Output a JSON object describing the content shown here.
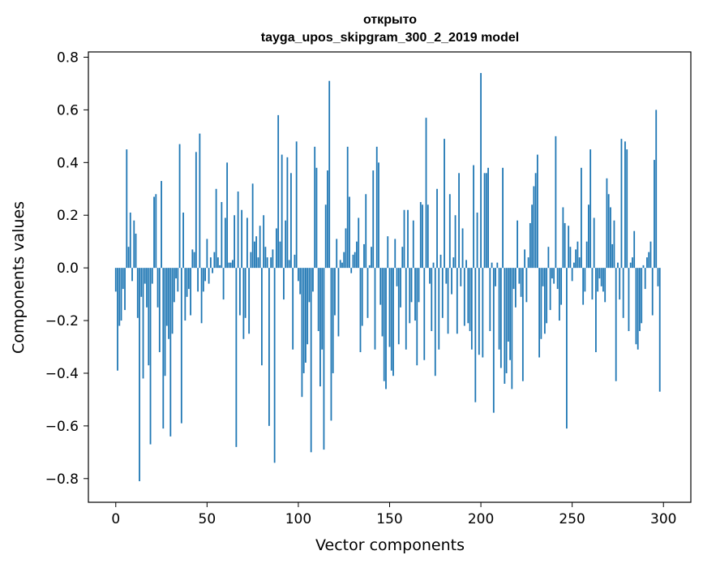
{
  "chart_data": {
    "type": "bar",
    "title": "открыто",
    "subtitle": "tayga_upos_skipgram_300_2_2019 model",
    "xlabel": "Vector components",
    "ylabel": "Components values",
    "xlim": [
      -15,
      315
    ],
    "ylim": [
      -0.89,
      0.82
    ],
    "xticks": [
      0,
      50,
      100,
      150,
      200,
      250,
      300
    ],
    "yticks": [
      -0.8,
      -0.6,
      -0.4,
      -0.2,
      0.0,
      0.2,
      0.4,
      0.6,
      0.8
    ],
    "xtick_labels": [
      "0",
      "50",
      "100",
      "150",
      "200",
      "250",
      "300"
    ],
    "ytick_labels": [
      "−0.8",
      "−0.6",
      "−0.4",
      "−0.2",
      "0.0",
      "0.2",
      "0.4",
      "0.6",
      "0.8"
    ],
    "bar_color": "#1f77b4",
    "grid": false,
    "x": "0..299",
    "values": [
      -0.09,
      -0.39,
      -0.22,
      -0.2,
      -0.08,
      -0.16,
      0.45,
      0.08,
      0.21,
      -0.05,
      0.18,
      0.13,
      -0.19,
      -0.81,
      -0.11,
      -0.42,
      -0.06,
      -0.15,
      -0.37,
      -0.67,
      -0.06,
      0.27,
      0.28,
      -0.15,
      -0.32,
      0.33,
      -0.61,
      -0.41,
      -0.22,
      -0.27,
      -0.64,
      -0.25,
      -0.13,
      -0.04,
      -0.09,
      0.47,
      -0.59,
      0.21,
      -0.2,
      -0.11,
      -0.08,
      -0.18,
      0.07,
      0.06,
      0.44,
      -0.09,
      0.51,
      -0.21,
      -0.09,
      -0.05,
      0.11,
      -0.06,
      0.04,
      -0.02,
      0.06,
      0.3,
      0.04,
      0.01,
      0.25,
      -0.12,
      0.19,
      0.4,
      0.02,
      0.02,
      0.03,
      0.2,
      -0.68,
      0.29,
      -0.18,
      0.22,
      -0.27,
      -0.19,
      0.19,
      -0.25,
      0.06,
      0.32,
      0.1,
      0.12,
      0.04,
      0.16,
      -0.37,
      0.2,
      0.08,
      0.04,
      -0.6,
      0.04,
      0.07,
      -0.74,
      0.15,
      0.58,
      0.1,
      0.43,
      -0.12,
      0.18,
      0.42,
      0.03,
      0.36,
      -0.31,
      0.05,
      0.48,
      -0.05,
      -0.1,
      -0.49,
      -0.4,
      -0.36,
      -0.29,
      -0.13,
      -0.7,
      -0.09,
      0.46,
      0.38,
      -0.24,
      -0.45,
      -0.31,
      -0.69,
      0.24,
      0.37,
      0.71,
      -0.58,
      -0.4,
      -0.18,
      0.11,
      -0.26,
      0.03,
      0.02,
      0.06,
      0.15,
      0.46,
      0.27,
      -0.02,
      0.05,
      0.06,
      0.1,
      0.19,
      -0.32,
      -0.22,
      0.09,
      0.28,
      -0.19,
      0.01,
      0.08,
      0.37,
      -0.31,
      0.46,
      0.4,
      -0.14,
      -0.26,
      -0.43,
      -0.46,
      0.12,
      -0.3,
      -0.39,
      -0.41,
      0.11,
      -0.07,
      -0.29,
      -0.15,
      0.08,
      0.22,
      -0.31,
      0.22,
      -0.21,
      -0.13,
      0.18,
      -0.2,
      -0.37,
      -0.13,
      0.25,
      0.24,
      -0.35,
      0.57,
      0.24,
      -0.06,
      -0.24,
      0.02,
      -0.41,
      0.3,
      -0.31,
      0.05,
      -0.19,
      0.49,
      -0.06,
      -0.25,
      0.28,
      -0.1,
      0.04,
      0.2,
      -0.25,
      0.36,
      -0.07,
      0.15,
      -0.22,
      0.03,
      -0.21,
      -0.24,
      -0.31,
      0.39,
      -0.51,
      0.21,
      -0.33,
      0.74,
      -0.34,
      0.36,
      0.36,
      0.38,
      -0.24,
      0.02,
      -0.55,
      -0.07,
      0.02,
      -0.31,
      -0.38,
      0.38,
      -0.44,
      -0.4,
      -0.28,
      -0.35,
      -0.46,
      -0.08,
      -0.15,
      0.18,
      -0.06,
      -0.11,
      -0.43,
      0.07,
      -0.13,
      0.04,
      0.17,
      0.24,
      0.31,
      0.36,
      0.43,
      -0.34,
      -0.27,
      -0.07,
      -0.25,
      -0.21,
      0.08,
      -0.16,
      -0.04,
      -0.06,
      0.5,
      -0.08,
      -0.2,
      -0.14,
      0.23,
      0.17,
      -0.61,
      0.16,
      0.08,
      -0.05,
      0.02,
      0.07,
      0.1,
      0.04,
      0.38,
      -0.14,
      -0.09,
      0.1,
      0.24,
      0.45,
      -0.12,
      0.19,
      -0.32,
      -0.09,
      -0.04,
      -0.07,
      -0.09,
      -0.13,
      0.34,
      0.28,
      0.23,
      0.09,
      0.18,
      -0.43,
      0.02,
      -0.12,
      0.49,
      -0.19,
      0.48,
      0.45,
      -0.24,
      0.02,
      0.04,
      0.14,
      -0.29,
      -0.31,
      -0.24,
      -0.21,
      0.01,
      -0.08,
      0.04,
      0.06,
      0.1,
      -0.18,
      0.41,
      0.6,
      -0.07,
      -0.47
    ]
  }
}
